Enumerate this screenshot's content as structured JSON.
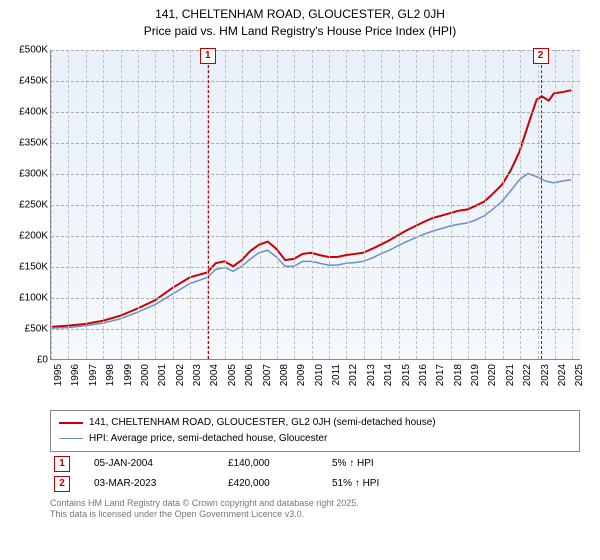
{
  "title": {
    "line1": "141, CHELTENHAM ROAD, GLOUCESTER, GL2 0JH",
    "line2": "Price paid vs. HM Land Registry's House Price Index (HPI)"
  },
  "chart": {
    "type": "line",
    "background_gradient_top": "#e6eef8",
    "background_gradient_bottom": "#f4f8fc",
    "grid_color": "#aaaaaa",
    "axis_color": "#888888",
    "x": {
      "years": [
        1995,
        1996,
        1997,
        1998,
        1999,
        2000,
        2001,
        2002,
        2003,
        2004,
        2005,
        2006,
        2007,
        2008,
        2009,
        2010,
        2011,
        2012,
        2013,
        2014,
        2015,
        2016,
        2017,
        2018,
        2019,
        2020,
        2021,
        2022,
        2023,
        2024,
        2025
      ],
      "min": 1995,
      "max": 2025.5,
      "tick_fontsize": 10,
      "tick_rotation": -90
    },
    "y": {
      "ticks": [
        0,
        50000,
        100000,
        150000,
        200000,
        250000,
        300000,
        350000,
        400000,
        450000,
        500000
      ],
      "tick_labels": [
        "£0",
        "£50K",
        "£100K",
        "£150K",
        "£200K",
        "£250K",
        "£300K",
        "£350K",
        "£400K",
        "£450K",
        "£500K"
      ],
      "min": 0,
      "max": 500000,
      "tick_fontsize": 10
    },
    "series": [
      {
        "name": "141, CHELTENHAM ROAD, GLOUCESTER, GL2 0JH (semi-detached house)",
        "color": "#cc0000",
        "width": 2,
        "points": [
          [
            1995,
            52000
          ],
          [
            1996,
            54000
          ],
          [
            1997,
            57000
          ],
          [
            1998,
            62000
          ],
          [
            1999,
            70000
          ],
          [
            2000,
            82000
          ],
          [
            2001,
            95000
          ],
          [
            2002,
            115000
          ],
          [
            2003,
            132000
          ],
          [
            2004,
            140000
          ],
          [
            2004.5,
            155000
          ],
          [
            2005,
            158000
          ],
          [
            2005.5,
            150000
          ],
          [
            2006,
            160000
          ],
          [
            2006.5,
            175000
          ],
          [
            2007,
            185000
          ],
          [
            2007.5,
            190000
          ],
          [
            2008,
            178000
          ],
          [
            2008.5,
            160000
          ],
          [
            2009,
            162000
          ],
          [
            2009.5,
            170000
          ],
          [
            2010,
            172000
          ],
          [
            2010.5,
            168000
          ],
          [
            2011,
            165000
          ],
          [
            2011.5,
            165000
          ],
          [
            2012,
            168000
          ],
          [
            2012.5,
            170000
          ],
          [
            2013,
            172000
          ],
          [
            2013.5,
            178000
          ],
          [
            2014,
            185000
          ],
          [
            2014.5,
            192000
          ],
          [
            2015,
            200000
          ],
          [
            2015.5,
            208000
          ],
          [
            2016,
            215000
          ],
          [
            2016.5,
            222000
          ],
          [
            2017,
            228000
          ],
          [
            2017.5,
            232000
          ],
          [
            2018,
            236000
          ],
          [
            2018.5,
            240000
          ],
          [
            2019,
            242000
          ],
          [
            2019.5,
            248000
          ],
          [
            2020,
            255000
          ],
          [
            2020.5,
            268000
          ],
          [
            2021,
            282000
          ],
          [
            2021.5,
            305000
          ],
          [
            2022,
            335000
          ],
          [
            2022.5,
            378000
          ],
          [
            2023,
            420000
          ],
          [
            2023.3,
            425000
          ],
          [
            2023.7,
            418000
          ],
          [
            2024,
            430000
          ],
          [
            2024.5,
            432000
          ],
          [
            2025,
            435000
          ]
        ]
      },
      {
        "name": "HPI: Average price, semi-detached house, Gloucester",
        "color": "#6a8fc7",
        "width": 1.5,
        "points": [
          [
            1995,
            50000
          ],
          [
            1996,
            51000
          ],
          [
            1997,
            54000
          ],
          [
            1998,
            58000
          ],
          [
            1999,
            65000
          ],
          [
            2000,
            76000
          ],
          [
            2001,
            88000
          ],
          [
            2002,
            105000
          ],
          [
            2003,
            122000
          ],
          [
            2004,
            132000
          ],
          [
            2004.5,
            145000
          ],
          [
            2005,
            148000
          ],
          [
            2005.5,
            142000
          ],
          [
            2006,
            150000
          ],
          [
            2006.5,
            162000
          ],
          [
            2007,
            172000
          ],
          [
            2007.5,
            176000
          ],
          [
            2008,
            165000
          ],
          [
            2008.5,
            150000
          ],
          [
            2009,
            150000
          ],
          [
            2009.5,
            158000
          ],
          [
            2010,
            158000
          ],
          [
            2010.5,
            155000
          ],
          [
            2011,
            152000
          ],
          [
            2011.5,
            152000
          ],
          [
            2012,
            155000
          ],
          [
            2012.5,
            156000
          ],
          [
            2013,
            158000
          ],
          [
            2013.5,
            163000
          ],
          [
            2014,
            170000
          ],
          [
            2014.5,
            176000
          ],
          [
            2015,
            183000
          ],
          [
            2015.5,
            190000
          ],
          [
            2016,
            196000
          ],
          [
            2016.5,
            202000
          ],
          [
            2017,
            207000
          ],
          [
            2017.5,
            211000
          ],
          [
            2018,
            215000
          ],
          [
            2018.5,
            218000
          ],
          [
            2019,
            220000
          ],
          [
            2019.5,
            225000
          ],
          [
            2020,
            232000
          ],
          [
            2020.5,
            243000
          ],
          [
            2021,
            255000
          ],
          [
            2021.5,
            272000
          ],
          [
            2022,
            290000
          ],
          [
            2022.5,
            300000
          ],
          [
            2023,
            295000
          ],
          [
            2023.5,
            288000
          ],
          [
            2024,
            285000
          ],
          [
            2024.5,
            288000
          ],
          [
            2025,
            290000
          ]
        ]
      }
    ],
    "markers": [
      {
        "label": "1",
        "year": 2004.02,
        "color": "#c00000"
      },
      {
        "label": "2",
        "year": 2023.17,
        "color": "#c00000"
      }
    ]
  },
  "legend": {
    "series1": "141, CHELTENHAM ROAD, GLOUCESTER, GL2 0JH (semi-detached house)",
    "series2": "HPI: Average price, semi-detached house, Gloucester",
    "color1": "#cc0000",
    "color2": "#6a8fc7"
  },
  "sales": [
    {
      "badge": "1",
      "date": "05-JAN-2004",
      "price": "£140,000",
      "delta": "5% ↑ HPI"
    },
    {
      "badge": "2",
      "date": "03-MAR-2023",
      "price": "£420,000",
      "delta": "51% ↑ HPI"
    }
  ],
  "credits": {
    "line1": "Contains HM Land Registry data © Crown copyright and database right 2025.",
    "line2": "This data is licensed under the Open Government Licence v3.0."
  }
}
